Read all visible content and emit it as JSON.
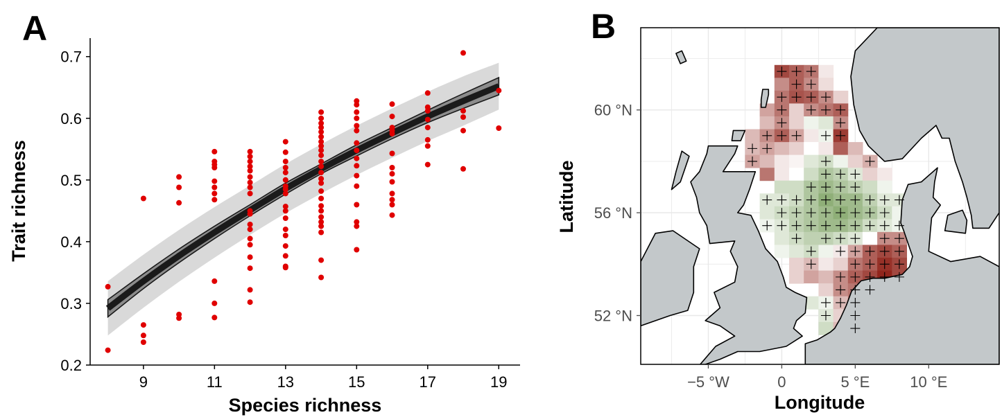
{
  "panels": {
    "a_letter": "A",
    "b_letter": "B"
  },
  "chart_data": [
    {
      "type": "scatter",
      "panel": "A",
      "title": "",
      "xlabel": "Species richness",
      "ylabel": "Trait richness",
      "xlim": [
        7.5,
        19.6
      ],
      "ylim": [
        0.2,
        0.73
      ],
      "xticks": [
        9,
        11,
        13,
        15,
        17,
        19
      ],
      "yticks": [
        0.2,
        0.3,
        0.4,
        0.5,
        0.6,
        0.7
      ],
      "grid": false,
      "point_color": "#e00000",
      "points": [
        [
          8,
          0.327
        ],
        [
          8,
          0.224
        ],
        [
          9,
          0.47
        ],
        [
          9,
          0.265
        ],
        [
          9,
          0.248
        ],
        [
          9,
          0.237
        ],
        [
          10,
          0.505
        ],
        [
          10,
          0.488
        ],
        [
          10,
          0.463
        ],
        [
          10,
          0.282
        ],
        [
          10,
          0.276
        ],
        [
          11,
          0.546
        ],
        [
          11,
          0.53
        ],
        [
          11,
          0.525
        ],
        [
          11,
          0.52
        ],
        [
          11,
          0.498
        ],
        [
          11,
          0.488
        ],
        [
          11,
          0.478
        ],
        [
          11,
          0.468
        ],
        [
          11,
          0.336
        ],
        [
          11,
          0.3
        ],
        [
          11,
          0.277
        ],
        [
          12,
          0.546
        ],
        [
          12,
          0.538
        ],
        [
          12,
          0.53
        ],
        [
          12,
          0.522
        ],
        [
          12,
          0.515
        ],
        [
          12,
          0.505
        ],
        [
          12,
          0.496
        ],
        [
          12,
          0.488
        ],
        [
          12,
          0.478
        ],
        [
          12,
          0.45
        ],
        [
          12,
          0.445
        ],
        [
          12,
          0.428
        ],
        [
          12,
          0.42
        ],
        [
          12,
          0.405
        ],
        [
          12,
          0.395
        ],
        [
          12,
          0.375
        ],
        [
          12,
          0.357
        ],
        [
          12,
          0.322
        ],
        [
          12,
          0.302
        ],
        [
          13,
          0.562
        ],
        [
          13,
          0.545
        ],
        [
          13,
          0.53
        ],
        [
          13,
          0.52
        ],
        [
          13,
          0.512
        ],
        [
          13,
          0.5
        ],
        [
          13,
          0.49
        ],
        [
          13,
          0.485
        ],
        [
          13,
          0.478
        ],
        [
          13,
          0.457
        ],
        [
          13,
          0.45
        ],
        [
          13,
          0.438
        ],
        [
          13,
          0.42
        ],
        [
          13,
          0.41
        ],
        [
          13,
          0.393
        ],
        [
          13,
          0.377
        ],
        [
          13,
          0.36
        ],
        [
          13,
          0.358
        ],
        [
          14,
          0.61
        ],
        [
          14,
          0.6
        ],
        [
          14,
          0.592
        ],
        [
          14,
          0.585
        ],
        [
          14,
          0.578
        ],
        [
          14,
          0.57
        ],
        [
          14,
          0.562
        ],
        [
          14,
          0.555
        ],
        [
          14,
          0.548
        ],
        [
          14,
          0.54
        ],
        [
          14,
          0.53
        ],
        [
          14,
          0.522
        ],
        [
          14,
          0.512
        ],
        [
          14,
          0.502
        ],
        [
          14,
          0.495
        ],
        [
          14,
          0.482
        ],
        [
          14,
          0.47
        ],
        [
          14,
          0.458
        ],
        [
          14,
          0.45
        ],
        [
          14,
          0.44
        ],
        [
          14,
          0.432
        ],
        [
          14,
          0.425
        ],
        [
          14,
          0.415
        ],
        [
          14,
          0.37
        ],
        [
          14,
          0.342
        ],
        [
          15,
          0.628
        ],
        [
          15,
          0.622
        ],
        [
          15,
          0.61
        ],
        [
          15,
          0.6
        ],
        [
          15,
          0.588
        ],
        [
          15,
          0.58
        ],
        [
          15,
          0.56
        ],
        [
          15,
          0.548
        ],
        [
          15,
          0.535
        ],
        [
          15,
          0.523
        ],
        [
          15,
          0.507
        ],
        [
          15,
          0.49
        ],
        [
          15,
          0.46
        ],
        [
          15,
          0.432
        ],
        [
          15,
          0.425
        ],
        [
          15,
          0.387
        ],
        [
          16,
          0.623
        ],
        [
          16,
          0.603
        ],
        [
          16,
          0.585
        ],
        [
          16,
          0.58
        ],
        [
          16,
          0.575
        ],
        [
          16,
          0.543
        ],
        [
          16,
          0.52
        ],
        [
          16,
          0.51
        ],
        [
          16,
          0.497
        ],
        [
          16,
          0.478
        ],
        [
          16,
          0.468
        ],
        [
          16,
          0.46
        ],
        [
          16,
          0.443
        ],
        [
          17,
          0.641
        ],
        [
          17,
          0.618
        ],
        [
          17,
          0.612
        ],
        [
          17,
          0.598
        ],
        [
          17,
          0.585
        ],
        [
          17,
          0.565
        ],
        [
          17,
          0.555
        ],
        [
          17,
          0.525
        ],
        [
          18,
          0.706
        ],
        [
          18,
          0.612
        ],
        [
          18,
          0.602
        ],
        [
          18,
          0.58
        ],
        [
          18,
          0.518
        ],
        [
          19,
          0.645
        ],
        [
          19,
          0.584
        ]
      ],
      "fit": {
        "x": [
          8,
          9,
          10,
          11,
          12,
          13,
          14,
          15,
          16,
          17,
          18,
          19
        ],
        "y": [
          0.292,
          0.336,
          0.377,
          0.415,
          0.451,
          0.486,
          0.518,
          0.548,
          0.576,
          0.603,
          0.628,
          0.652
        ],
        "inner_band_half_width": [
          0.014,
          0.012,
          0.011,
          0.01,
          0.009,
          0.009,
          0.008,
          0.009,
          0.009,
          0.01,
          0.012,
          0.014
        ],
        "outer_band_half_width": [
          0.044,
          0.043,
          0.042,
          0.041,
          0.04,
          0.04,
          0.04,
          0.04,
          0.04,
          0.04,
          0.04,
          0.038
        ],
        "line_color": "#1a1a1a",
        "band_color": "#d9d9d9",
        "inner_band_color": "#8c8c8c"
      }
    },
    {
      "type": "heatmap",
      "panel": "B",
      "title": "",
      "xlabel": "Longitude",
      "ylabel": "Latitude",
      "xlim": [
        -9.6,
        14.8
      ],
      "ylim": [
        50.1,
        63.2
      ],
      "xticks": [
        -5,
        0,
        5,
        10
      ],
      "xtick_labels": [
        "−5 °W",
        "0",
        "5 °E",
        "10 °E"
      ],
      "yticks": [
        52,
        56,
        60
      ],
      "ytick_labels": [
        "52 °N",
        "56 °N",
        "60 °N"
      ],
      "grid": true,
      "cell_size_deg": [
        1,
        0.5
      ],
      "land_color": "#c3c8ca",
      "positive_color": "#8b1a10",
      "negative_color": "#5f8c3e",
      "neutral_color": "#ffffff",
      "value_range": [
        -1,
        1
      ],
      "grid_columns": [
        -2,
        -1,
        0,
        1,
        2,
        3,
        4,
        5,
        6,
        7,
        8
      ],
      "rows": [
        {
          "lat": 61.5,
          "values": [
            null,
            null,
            0.8,
            0.7,
            0.6,
            0.1,
            null,
            null,
            null,
            null,
            null
          ],
          "plus": [
            0,
            0,
            1,
            1,
            1,
            0,
            0,
            0,
            0,
            0,
            0
          ]
        },
        {
          "lat": 61.0,
          "values": [
            null,
            null,
            0.5,
            0.7,
            0.5,
            0.15,
            null,
            null,
            null,
            null,
            null
          ],
          "plus": [
            0,
            0,
            0,
            1,
            1,
            0,
            0,
            0,
            0,
            0,
            0
          ]
        },
        {
          "lat": 60.5,
          "values": [
            null,
            null,
            0.6,
            0.75,
            0.7,
            0.5,
            0.2,
            null,
            null,
            null,
            null
          ],
          "plus": [
            0,
            0,
            1,
            1,
            1,
            1,
            0,
            0,
            0,
            0,
            0
          ]
        },
        {
          "lat": 60.0,
          "values": [
            null,
            0.4,
            0.6,
            0.2,
            0.5,
            0.6,
            0.7,
            null,
            null,
            null,
            null
          ],
          "plus": [
            0,
            0,
            1,
            0,
            1,
            1,
            1,
            0,
            0,
            0,
            0
          ]
        },
        {
          "lat": 59.5,
          "values": [
            null,
            0.3,
            0.5,
            0.2,
            -0.1,
            -0.2,
            0.5,
            null,
            null,
            null,
            null
          ],
          "plus": [
            0,
            0,
            1,
            0,
            0,
            0,
            1,
            0,
            0,
            0,
            0
          ]
        },
        {
          "lat": 59.0,
          "values": [
            0.3,
            0.5,
            0.7,
            0.4,
            0.1,
            -0.1,
            0.85,
            null,
            null,
            null,
            null
          ],
          "plus": [
            0,
            1,
            1,
            1,
            0,
            1,
            1,
            0,
            0,
            0,
            0
          ]
        },
        {
          "lat": 58.5,
          "values": [
            0.3,
            0.4,
            0.3,
            0.2,
            0.0,
            0.1,
            0.7,
            0.3,
            null,
            null,
            null
          ],
          "plus": [
            1,
            1,
            0,
            0,
            0,
            0,
            0,
            0,
            0,
            0,
            0
          ]
        },
        {
          "lat": 58.0,
          "values": [
            0.4,
            0.3,
            0.1,
            0.05,
            -0.2,
            -0.3,
            -0.1,
            0.2,
            0.35,
            null,
            null
          ],
          "plus": [
            1,
            0,
            0,
            0,
            0,
            1,
            0,
            0,
            1,
            0,
            0
          ]
        },
        {
          "lat": 57.5,
          "values": [
            null,
            0.6,
            0.1,
            0.0,
            -0.3,
            -0.5,
            -0.4,
            -0.2,
            0.2,
            0.1,
            null
          ],
          "plus": [
            0,
            0,
            0,
            0,
            0,
            1,
            1,
            1,
            0,
            0,
            0
          ]
        },
        {
          "lat": 57.0,
          "values": [
            null,
            null,
            -0.3,
            -0.3,
            -0.5,
            -0.6,
            -0.5,
            -0.4,
            -0.3,
            -0.1,
            null
          ],
          "plus": [
            0,
            0,
            0,
            0,
            1,
            1,
            1,
            1,
            0,
            0,
            0
          ]
        },
        {
          "lat": 56.5,
          "values": [
            null,
            -0.2,
            -0.2,
            -0.3,
            -0.5,
            -0.7,
            -0.6,
            -0.6,
            -0.4,
            -0.2,
            -0.2
          ],
          "plus": [
            0,
            1,
            1,
            1,
            1,
            1,
            1,
            1,
            1,
            1,
            1
          ]
        },
        {
          "lat": 56.0,
          "values": [
            null,
            -0.2,
            -0.3,
            -0.4,
            -0.5,
            -0.6,
            -0.7,
            -0.6,
            -0.5,
            -0.3,
            -0.1
          ],
          "plus": [
            0,
            0,
            1,
            1,
            1,
            1,
            1,
            1,
            1,
            1,
            0
          ]
        },
        {
          "lat": 55.5,
          "values": [
            null,
            -0.1,
            -0.2,
            -0.4,
            -0.5,
            -0.6,
            -0.6,
            -0.5,
            -0.3,
            -0.2,
            -0.1
          ],
          "plus": [
            0,
            1,
            1,
            1,
            1,
            1,
            1,
            1,
            1,
            1,
            1
          ]
        },
        {
          "lat": 55.0,
          "values": [
            null,
            null,
            -0.2,
            -0.3,
            -0.4,
            -0.4,
            -0.3,
            -0.2,
            0.0,
            0.5,
            0.5
          ],
          "plus": [
            0,
            0,
            0,
            1,
            0,
            1,
            1,
            1,
            0,
            1,
            1
          ]
        },
        {
          "lat": 54.5,
          "values": [
            null,
            null,
            -0.1,
            -0.2,
            -0.3,
            -0.1,
            0.1,
            0.4,
            0.7,
            0.8,
            0.7
          ],
          "plus": [
            0,
            0,
            0,
            0,
            1,
            0,
            1,
            1,
            1,
            1,
            1
          ]
        },
        {
          "lat": 54.0,
          "values": [
            null,
            null,
            null,
            0.2,
            0.3,
            0.1,
            0.2,
            0.6,
            0.7,
            0.9,
            0.8
          ],
          "plus": [
            0,
            0,
            0,
            0,
            1,
            0,
            0,
            1,
            1,
            1,
            1
          ]
        },
        {
          "lat": 53.5,
          "values": [
            null,
            null,
            null,
            0.2,
            0.4,
            0.3,
            0.5,
            0.7,
            0.8,
            0.95,
            0.8
          ],
          "plus": [
            0,
            0,
            0,
            0,
            0,
            0,
            1,
            1,
            1,
            1,
            1
          ]
        },
        {
          "lat": 53.0,
          "values": [
            null,
            null,
            null,
            null,
            0.0,
            0.2,
            0.5,
            0.6,
            0.9,
            0.7,
            null
          ],
          "plus": [
            0,
            0,
            0,
            0,
            0,
            0,
            1,
            1,
            1,
            0,
            0
          ]
        },
        {
          "lat": 52.5,
          "values": [
            null,
            null,
            null,
            null,
            -0.2,
            -0.1,
            0.3,
            0.6,
            null,
            null,
            null
          ],
          "plus": [
            0,
            0,
            0,
            0,
            0,
            1,
            1,
            1,
            0,
            0,
            0
          ]
        },
        {
          "lat": 52.0,
          "values": [
            null,
            null,
            null,
            null,
            null,
            -0.2,
            0.2,
            0.5,
            null,
            null,
            null
          ],
          "plus": [
            0,
            0,
            0,
            0,
            0,
            1,
            0,
            1,
            0,
            0,
            0
          ]
        },
        {
          "lat": 51.5,
          "values": [
            null,
            null,
            null,
            null,
            null,
            -0.3,
            0.3,
            0.5,
            null,
            null,
            null
          ],
          "plus": [
            0,
            0,
            0,
            0,
            0,
            0,
            0,
            1,
            0,
            0,
            0
          ]
        }
      ]
    }
  ]
}
